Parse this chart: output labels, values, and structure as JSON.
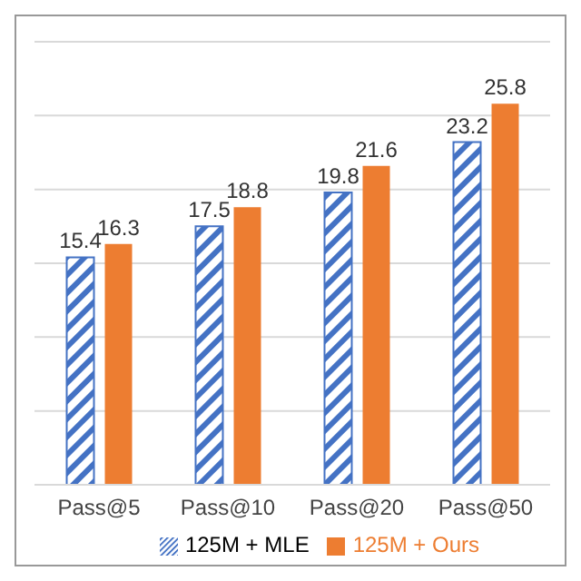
{
  "chart_data": {
    "type": "bar",
    "categories": [
      "Pass@5",
      "Pass@10",
      "Pass@20",
      "Pass@50"
    ],
    "series": [
      {
        "name": "125M + MLE",
        "color": "#4472c4",
        "values": [
          15.4,
          17.5,
          19.8,
          23.2
        ]
      },
      {
        "name": "125M + Ours",
        "color": "#ed7d31",
        "values": [
          16.3,
          18.8,
          21.6,
          25.8
        ]
      }
    ],
    "ylim": [
      0,
      30
    ],
    "yticks": [
      {
        "value": 0,
        "label": null
      },
      {
        "value": 5,
        "label": null
      },
      {
        "value": 10,
        "label": null
      },
      {
        "value": 15,
        "label": null
      },
      {
        "value": 20,
        "label": null
      },
      {
        "value": 25,
        "label": null
      },
      {
        "value": 30,
        "label": null
      }
    ],
    "tick_labels": "x",
    "grid": "y",
    "legend": "bottom",
    "data_labels": true
  }
}
